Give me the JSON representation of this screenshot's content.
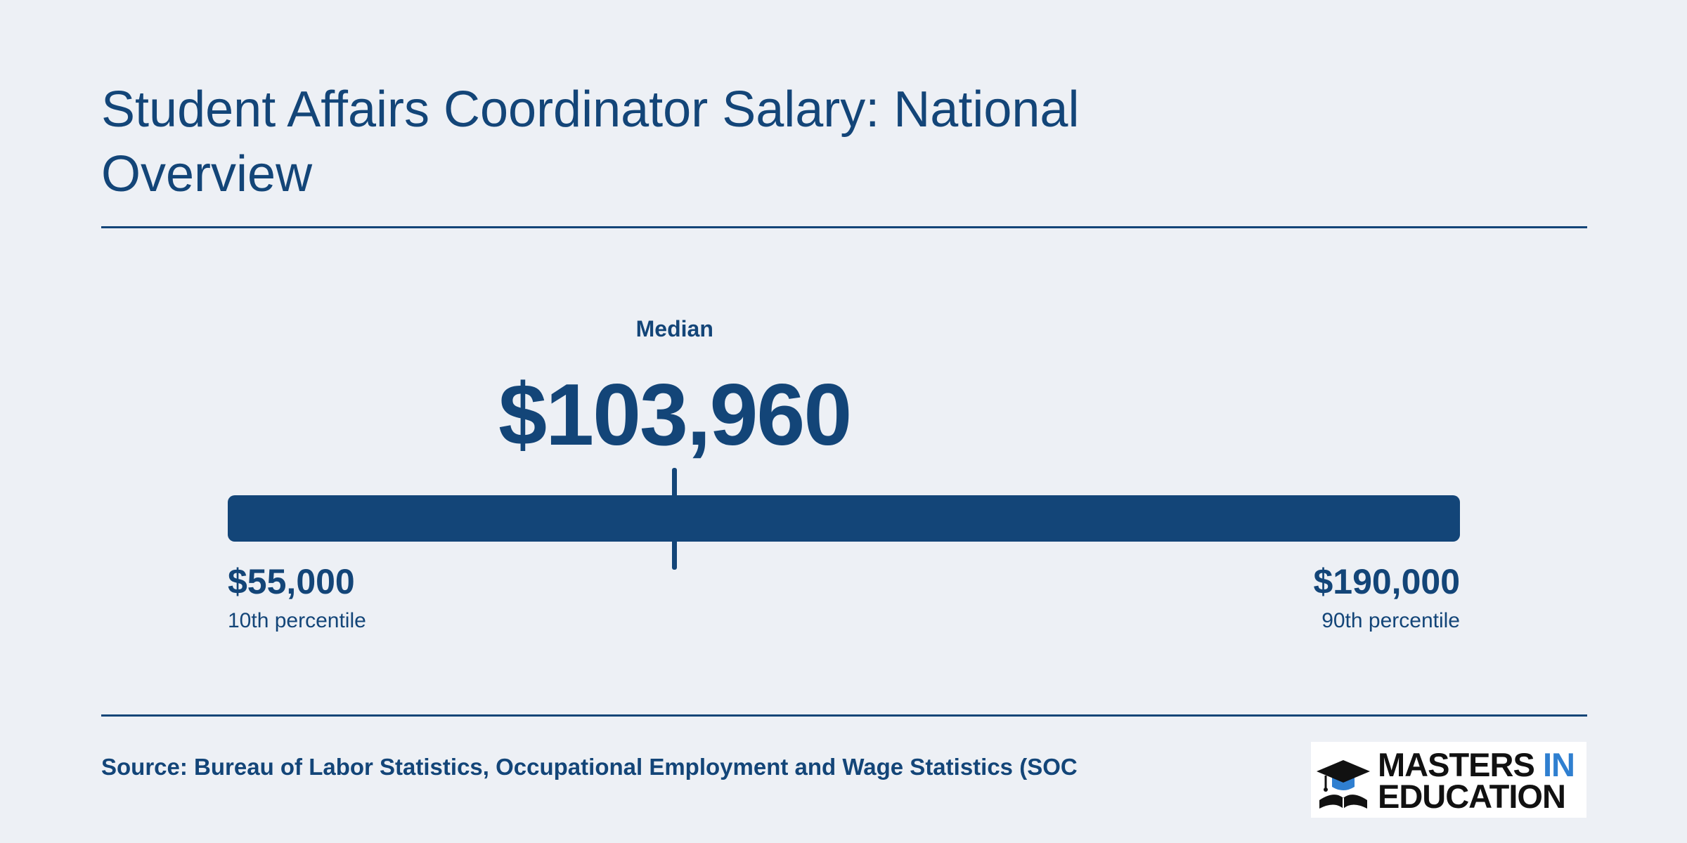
{
  "title": "Student Affairs Coordinator Salary: National Overview",
  "chart_data": {
    "type": "range",
    "min": 55000,
    "median": 103960,
    "max": 190000,
    "labels": {
      "median_label": "Median",
      "median_value": "$103,960",
      "low_value": "$55,000",
      "low_caption": "10th percentile",
      "high_value": "$190,000",
      "high_caption": "90th percentile"
    }
  },
  "source": "Source: Bureau of Labor Statistics, Occupational Employment and Wage Statistics (SOC",
  "logo": {
    "word1": "MASTERS",
    "word2": "IN",
    "word3": "EDUCATION",
    "icon": "graduation-cap-book-icon"
  },
  "colors": {
    "background": "#edf0f5",
    "primary": "#134578",
    "logo_accent": "#2f7fd0",
    "logo_text": "#111111"
  }
}
